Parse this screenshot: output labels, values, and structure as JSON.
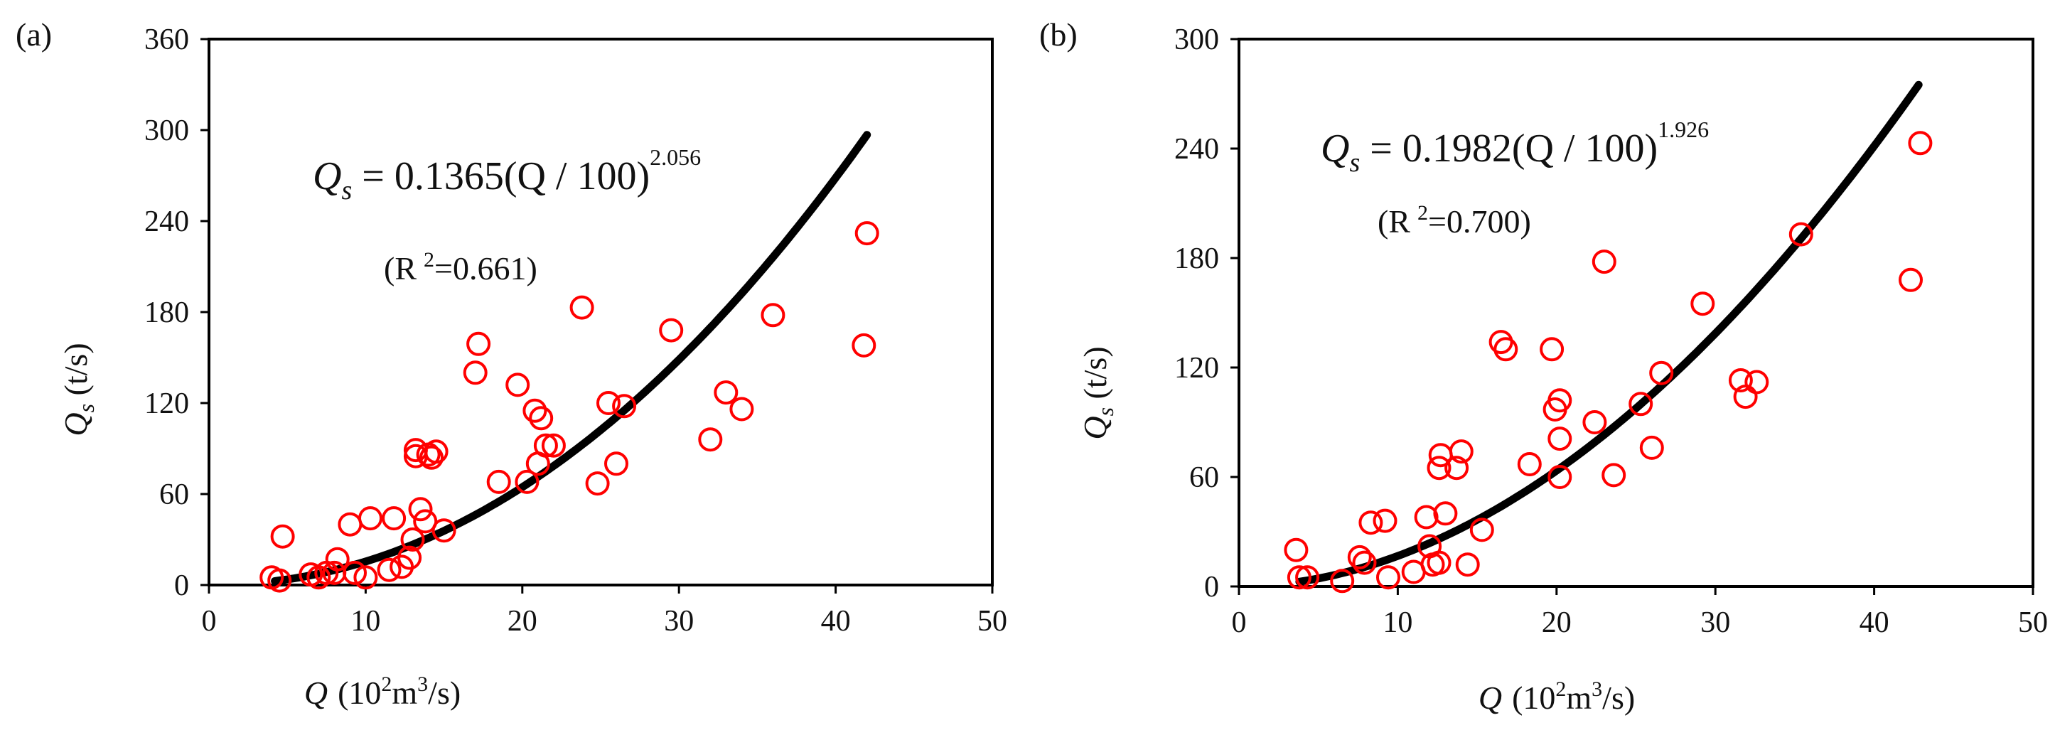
{
  "chart_data": [
    {
      "type": "scatter",
      "panel_label": "(a)",
      "xlabel": {
        "var": "Q",
        "unit": "(10",
        "unit_sup": "2",
        "unit_tail": "m",
        "unit_sup2": "3",
        "unit_end": "/s)"
      },
      "ylabel": {
        "var": "Q",
        "sub": "s",
        "unit": " (t/s)"
      },
      "xlim": [
        0,
        50
      ],
      "ylim": [
        0,
        360
      ],
      "xticks": [
        "0",
        "10",
        "20",
        "30",
        "40",
        "50"
      ],
      "yticks": [
        "0",
        "60",
        "120",
        "180",
        "240",
        "300",
        "360"
      ],
      "equation": {
        "lhs": "Q",
        "lhs_sub": "s",
        "rhs": " = 0.1365(Q / 100)",
        "exponent": "2.056"
      },
      "r2_text": "(R",
      "r2_sup": "2",
      "r2_value": "=0.661)",
      "fit": {
        "a": 0.1365,
        "b": 2.056,
        "x_from": 4.2,
        "x_to": 42
      },
      "series": [
        {
          "name": "observed",
          "color": "#ff0000",
          "x": [
            4.0,
            4.5,
            4.7,
            6.5,
            7.0,
            7.5,
            8.0,
            8.2,
            9.0,
            9.3,
            10.0,
            10.3,
            11.5,
            11.8,
            12.3,
            12.8,
            13.0,
            13.2,
            13.2,
            13.5,
            13.8,
            14.0,
            14.2,
            14.5,
            15.0,
            17.0,
            17.2,
            18.5,
            19.7,
            20.3,
            20.8,
            21.0,
            21.2,
            21.5,
            22.0,
            23.8,
            24.8,
            25.5,
            26.0,
            26.5,
            29.5,
            32.0,
            33.0,
            34.0,
            36.0,
            41.8,
            42.0
          ],
          "y": [
            5,
            3,
            32,
            7,
            5,
            8,
            8,
            17,
            40,
            8,
            5,
            44,
            10,
            44,
            12,
            18,
            30,
            85,
            89,
            50,
            42,
            86,
            84,
            88,
            36,
            140,
            159,
            68,
            132,
            68,
            115,
            80,
            110,
            92,
            92,
            183,
            67,
            120,
            80,
            118,
            168,
            96,
            127,
            116,
            178,
            158,
            232
          ]
        }
      ]
    },
    {
      "type": "scatter",
      "panel_label": "(b)",
      "xlabel": {
        "var": "Q",
        "unit": "(10",
        "unit_sup": "2",
        "unit_tail": "m",
        "unit_sup2": "3",
        "unit_end": "/s)"
      },
      "ylabel": {
        "var": "Q",
        "sub": "s",
        "unit": " (t/s)"
      },
      "xlim": [
        0,
        50
      ],
      "ylim": [
        0,
        300
      ],
      "xticks": [
        "0",
        "10",
        "20",
        "30",
        "40",
        "50"
      ],
      "yticks": [
        "0",
        "60",
        "120",
        "180",
        "240",
        "300"
      ],
      "equation": {
        "lhs": "Q",
        "lhs_sub": "s",
        "rhs": " = 0.1982(Q / 100)",
        "exponent": "1.926"
      },
      "r2_text": "(R",
      "r2_sup": "2",
      "r2_value": "=0.700)",
      "fit": {
        "a": 0.1982,
        "b": 1.926,
        "x_from": 3.8,
        "x_to": 42.8
      },
      "series": [
        {
          "name": "observed",
          "color": "#ff0000",
          "x": [
            3.6,
            3.8,
            4.3,
            6.5,
            7.6,
            7.9,
            8.3,
            9.2,
            9.4,
            11.0,
            11.8,
            12.0,
            12.2,
            12.6,
            12.6,
            12.7,
            13.0,
            13.7,
            14.0,
            14.4,
            15.3,
            16.5,
            16.8,
            18.3,
            19.7,
            19.9,
            20.2,
            20.2,
            20.2,
            22.4,
            23.0,
            23.6,
            25.3,
            26.0,
            26.6,
            29.2,
            31.6,
            31.9,
            32.6,
            35.4,
            42.3,
            42.9
          ],
          "y": [
            20,
            5,
            5,
            3,
            16,
            13,
            35,
            36,
            5,
            8,
            38,
            22,
            12,
            13,
            65,
            72,
            40,
            65,
            74,
            12,
            31,
            134,
            130,
            67,
            130,
            97,
            102,
            81,
            60,
            90,
            178,
            61,
            100,
            76,
            117,
            155,
            113,
            104,
            112,
            193,
            168,
            243
          ]
        }
      ]
    }
  ]
}
